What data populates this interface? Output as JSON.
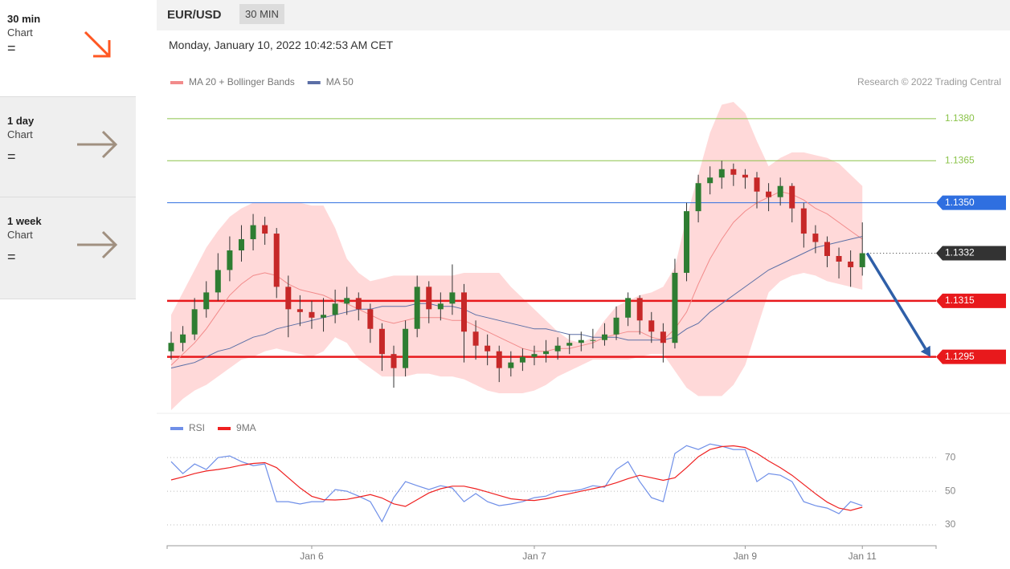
{
  "sidebar": [
    {
      "label": "30 min",
      "sub": "Chart",
      "signal": "="
    },
    {
      "label": "1 day",
      "sub": "Chart",
      "signal": "="
    },
    {
      "label": "1 week",
      "sub": "Chart",
      "signal": "="
    }
  ],
  "header": {
    "pair": "EUR/USD",
    "timeframe": "30 MIN",
    "timestamp": "Monday, January 10, 2022 10:42:53 AM CET",
    "credit": "Research © 2022 Trading Central"
  },
  "chart_data": [
    {
      "type": "candlestick",
      "ylim": [
        1.1276,
        1.1388
      ],
      "up_color": "#2e7d32",
      "down_color": "#c62828",
      "band_color": "#ffd9d9",
      "arrow_color": "#2f5fa8",
      "levels": [
        {
          "value": 1.138,
          "label": "1.1380",
          "color": "#8bc34a",
          "style": "text",
          "line": "thin"
        },
        {
          "value": 1.1365,
          "label": "1.1365",
          "color": "#8bc34a",
          "style": "text",
          "line": "thin"
        },
        {
          "value": 1.135,
          "label": "1.1350",
          "color": "#2f6fe0",
          "style": "badge",
          "line": "thin"
        },
        {
          "value": 1.1332,
          "label": "1.1332",
          "color": "#333333",
          "style": "badge",
          "line": "dotted"
        },
        {
          "value": 1.1315,
          "label": "1.1315",
          "color": "#e8191c",
          "style": "badge",
          "line": "thick"
        },
        {
          "value": 1.1295,
          "label": "1.1295",
          "color": "#e8191c",
          "style": "badge",
          "line": "thick"
        }
      ],
      "ohlc": [
        [
          1.1297,
          1.1304,
          1.1294,
          1.13
        ],
        [
          1.13,
          1.1306,
          1.1297,
          1.1303
        ],
        [
          1.1303,
          1.1316,
          1.1301,
          1.1312
        ],
        [
          1.1312,
          1.1322,
          1.1309,
          1.1318
        ],
        [
          1.1318,
          1.1332,
          1.1315,
          1.1326
        ],
        [
          1.1326,
          1.1338,
          1.1322,
          1.1333
        ],
        [
          1.1333,
          1.1342,
          1.1329,
          1.1337
        ],
        [
          1.1337,
          1.1346,
          1.1333,
          1.1342
        ],
        [
          1.1342,
          1.1345,
          1.1335,
          1.1339
        ],
        [
          1.1339,
          1.1341,
          1.1316,
          1.132
        ],
        [
          1.132,
          1.1324,
          1.1302,
          1.1312
        ],
        [
          1.1312,
          1.1317,
          1.1306,
          1.1311
        ],
        [
          1.1311,
          1.1315,
          1.1305,
          1.1309
        ],
        [
          1.1309,
          1.1316,
          1.1304,
          1.131
        ],
        [
          1.131,
          1.1319,
          1.1307,
          1.1314
        ],
        [
          1.1314,
          1.132,
          1.131,
          1.1316
        ],
        [
          1.1316,
          1.1318,
          1.1308,
          1.1312
        ],
        [
          1.1312,
          1.1314,
          1.13,
          1.1305
        ],
        [
          1.1305,
          1.1307,
          1.129,
          1.1296
        ],
        [
          1.1296,
          1.1299,
          1.1284,
          1.1291
        ],
        [
          1.1291,
          1.1308,
          1.1288,
          1.1305
        ],
        [
          1.1305,
          1.1324,
          1.1302,
          1.132
        ],
        [
          1.132,
          1.1322,
          1.1307,
          1.1312
        ],
        [
          1.1312,
          1.1318,
          1.1308,
          1.1314
        ],
        [
          1.1314,
          1.1328,
          1.131,
          1.1318
        ],
        [
          1.1318,
          1.1321,
          1.1293,
          1.1304
        ],
        [
          1.1304,
          1.1308,
          1.1294,
          1.1299
        ],
        [
          1.1299,
          1.1303,
          1.1292,
          1.1297
        ],
        [
          1.1297,
          1.1299,
          1.1286,
          1.1291
        ],
        [
          1.1291,
          1.1297,
          1.1288,
          1.1293
        ],
        [
          1.1293,
          1.1298,
          1.129,
          1.1295
        ],
        [
          1.1295,
          1.1299,
          1.1292,
          1.1296
        ],
        [
          1.1296,
          1.1301,
          1.1293,
          1.1297
        ],
        [
          1.1297,
          1.1302,
          1.1294,
          1.1299
        ],
        [
          1.1299,
          1.1303,
          1.1296,
          1.13
        ],
        [
          1.13,
          1.1304,
          1.1297,
          1.1301
        ],
        [
          1.1301,
          1.1305,
          1.1298,
          1.1301
        ],
        [
          1.1301,
          1.1307,
          1.1299,
          1.1303
        ],
        [
          1.1303,
          1.1313,
          1.1301,
          1.1309
        ],
        [
          1.1309,
          1.1318,
          1.1306,
          1.1316
        ],
        [
          1.1316,
          1.1317,
          1.1303,
          1.1308
        ],
        [
          1.1308,
          1.1311,
          1.13,
          1.1304
        ],
        [
          1.1304,
          1.1307,
          1.1293,
          1.13
        ],
        [
          1.13,
          1.133,
          1.1298,
          1.1325
        ],
        [
          1.1325,
          1.135,
          1.1322,
          1.1347
        ],
        [
          1.1347,
          1.136,
          1.1343,
          1.1357
        ],
        [
          1.1357,
          1.1363,
          1.1353,
          1.1359
        ],
        [
          1.1359,
          1.1365,
          1.1355,
          1.1362
        ],
        [
          1.1362,
          1.1364,
          1.1356,
          1.136
        ],
        [
          1.136,
          1.1362,
          1.1355,
          1.1359
        ],
        [
          1.1359,
          1.1361,
          1.1348,
          1.1354
        ],
        [
          1.1354,
          1.1357,
          1.1347,
          1.1352
        ],
        [
          1.1352,
          1.1359,
          1.1349,
          1.1356
        ],
        [
          1.1356,
          1.1357,
          1.1343,
          1.1348
        ],
        [
          1.1348,
          1.135,
          1.1334,
          1.1339
        ],
        [
          1.1339,
          1.1342,
          1.1332,
          1.1336
        ],
        [
          1.1336,
          1.1338,
          1.1327,
          1.1331
        ],
        [
          1.1331,
          1.1334,
          1.1323,
          1.1329
        ],
        [
          1.1329,
          1.1333,
          1.132,
          1.1327
        ],
        [
          1.1327,
          1.1343,
          1.1324,
          1.1332
        ]
      ],
      "series": [
        {
          "name": "MA 20 + Bollinger Bands",
          "color": "#f28b8b",
          "values": [
            1.1292,
            1.1296,
            1.13,
            1.1305,
            1.1311,
            1.1317,
            1.1321,
            1.1324,
            1.1325,
            1.1324,
            1.1321,
            1.1319,
            1.1318,
            1.1317,
            1.1315,
            1.1314,
            1.1312,
            1.131,
            1.1308,
            1.1307,
            1.1308,
            1.1309,
            1.1309,
            1.1309,
            1.1308,
            1.1308,
            1.1306,
            1.1304,
            1.1302,
            1.13,
            1.1298,
            1.1297,
            1.1297,
            1.1298,
            1.1298,
            1.1299,
            1.13,
            1.1302,
            1.1303,
            1.1304,
            1.1304,
            1.1302,
            1.1301,
            1.1305,
            1.1311,
            1.1321,
            1.133,
            1.1337,
            1.1343,
            1.1347,
            1.135,
            1.1352,
            1.1354,
            1.1353,
            1.1351,
            1.1348,
            1.1346,
            1.1343,
            1.134,
            1.1337
          ],
          "upper": [
            1.131,
            1.1318,
            1.1326,
            1.1334,
            1.134,
            1.1345,
            1.1348,
            1.135,
            1.135,
            1.135,
            1.135,
            1.135,
            1.1349,
            1.1349,
            1.1341,
            1.133,
            1.1325,
            1.1322,
            1.1323,
            1.1324,
            1.1324,
            1.1324,
            1.1324,
            1.1324,
            1.1324,
            1.1325,
            1.1325,
            1.1325,
            1.1325,
            1.132,
            1.1316,
            1.1312,
            1.1308,
            1.1304,
            1.1301,
            1.13,
            1.1302,
            1.1308,
            1.1313,
            1.1315,
            1.1317,
            1.1318,
            1.132,
            1.1327,
            1.1345,
            1.136,
            1.1375,
            1.1385,
            1.1386,
            1.1382,
            1.1372,
            1.1363,
            1.1366,
            1.1368,
            1.1368,
            1.1367,
            1.1366,
            1.1364,
            1.136,
            1.1356
          ],
          "lower": [
            1.1276,
            1.128,
            1.1283,
            1.1285,
            1.1288,
            1.1291,
            1.1294,
            1.1295,
            1.1297,
            1.1298,
            1.1297,
            1.1296,
            1.1295,
            1.1297,
            1.1302,
            1.13,
            1.1294,
            1.1291,
            1.1288,
            1.1288,
            1.1288,
            1.1289,
            1.1289,
            1.1288,
            1.1288,
            1.1287,
            1.1285,
            1.1283,
            1.1282,
            1.1282,
            1.1282,
            1.1283,
            1.1285,
            1.1288,
            1.129,
            1.1292,
            1.1294,
            1.1294,
            1.1294,
            1.1294,
            1.1295,
            1.1296,
            1.1296,
            1.129,
            1.1284,
            1.1281,
            1.1281,
            1.1281,
            1.1285,
            1.1292,
            1.1305,
            1.1318,
            1.1322,
            1.1324,
            1.1325,
            1.1324,
            1.1322,
            1.1321,
            1.132,
            1.1319
          ]
        },
        {
          "name": "MA 50",
          "color": "#5b6fa6",
          "values": [
            1.1291,
            1.1292,
            1.1293,
            1.1295,
            1.1297,
            1.1298,
            1.13,
            1.1302,
            1.1303,
            1.1305,
            1.1306,
            1.1307,
            1.1308,
            1.1309,
            1.131,
            1.1311,
            1.1312,
            1.1312,
            1.1313,
            1.1313,
            1.1313,
            1.1314,
            1.1314,
            1.1313,
            1.1313,
            1.1312,
            1.131,
            1.1309,
            1.1308,
            1.1307,
            1.1306,
            1.1305,
            1.1305,
            1.1304,
            1.1303,
            1.1303,
            1.1302,
            1.1302,
            1.1302,
            1.1301,
            1.1301,
            1.1301,
            1.1301,
            1.1302,
            1.1305,
            1.1307,
            1.1311,
            1.1314,
            1.1317,
            1.132,
            1.1323,
            1.1326,
            1.1328,
            1.133,
            1.1332,
            1.1334,
            1.1335,
            1.1336,
            1.1337,
            1.1338
          ]
        }
      ]
    },
    {
      "type": "line",
      "ylim": [
        20,
        82
      ],
      "yticks": [
        30,
        50,
        70
      ],
      "grid": true,
      "categories": [
        null,
        null,
        null,
        null,
        null,
        null,
        null,
        null,
        null,
        null,
        null,
        null,
        "Jan 6",
        null,
        null,
        null,
        null,
        null,
        null,
        null,
        null,
        null,
        null,
        null,
        null,
        null,
        null,
        null,
        null,
        null,
        null,
        "Jan 7",
        null,
        null,
        null,
        null,
        null,
        null,
        null,
        null,
        null,
        null,
        null,
        null,
        null,
        null,
        null,
        null,
        null,
        "Jan 9",
        null,
        null,
        null,
        null,
        null,
        null,
        null,
        null,
        null,
        "Jan 11"
      ],
      "series": [
        {
          "name": "RSI",
          "color": "#6f8fe8",
          "values": [
            67.6,
            60.5,
            66.2,
            62.9,
            70.0,
            71.0,
            67.6,
            65.2,
            66.2,
            43.8,
            43.8,
            42.4,
            43.8,
            43.8,
            51.0,
            50.0,
            47.1,
            43.8,
            31.9,
            46.2,
            55.7,
            53.3,
            51.0,
            53.3,
            51.9,
            43.8,
            48.6,
            43.8,
            41.4,
            42.4,
            43.8,
            46.2,
            47.1,
            50.0,
            50.0,
            51.0,
            53.3,
            52.4,
            62.9,
            67.6,
            55.7,
            46.2,
            43.8,
            72.4,
            77.1,
            74.8,
            78.1,
            76.7,
            74.8,
            74.8,
            55.7,
            60.5,
            59.5,
            55.7,
            43.8,
            41.4,
            40.0,
            36.7,
            43.8,
            41.4
          ]
        },
        {
          "name": "9MA",
          "color": "#ef2020",
          "values": [
            56.7,
            58.5,
            60.5,
            62.0,
            62.9,
            64.0,
            65.5,
            66.5,
            67.0,
            64.0,
            58.0,
            52.0,
            47.0,
            45.0,
            44.8,
            45.2,
            46.5,
            48.0,
            46.0,
            42.5,
            41.0,
            45.0,
            49.0,
            51.5,
            53.0,
            53.0,
            51.5,
            49.5,
            47.5,
            45.5,
            44.8,
            44.5,
            45.5,
            47.0,
            48.5,
            50.0,
            51.5,
            53.0,
            55.0,
            57.5,
            59.5,
            58.0,
            56.5,
            58.0,
            64.0,
            70.5,
            74.8,
            76.5,
            77.0,
            76.0,
            72.5,
            68.0,
            64.0,
            59.5,
            54.0,
            48.5,
            43.5,
            40.0,
            38.6,
            40.5
          ]
        }
      ]
    }
  ]
}
